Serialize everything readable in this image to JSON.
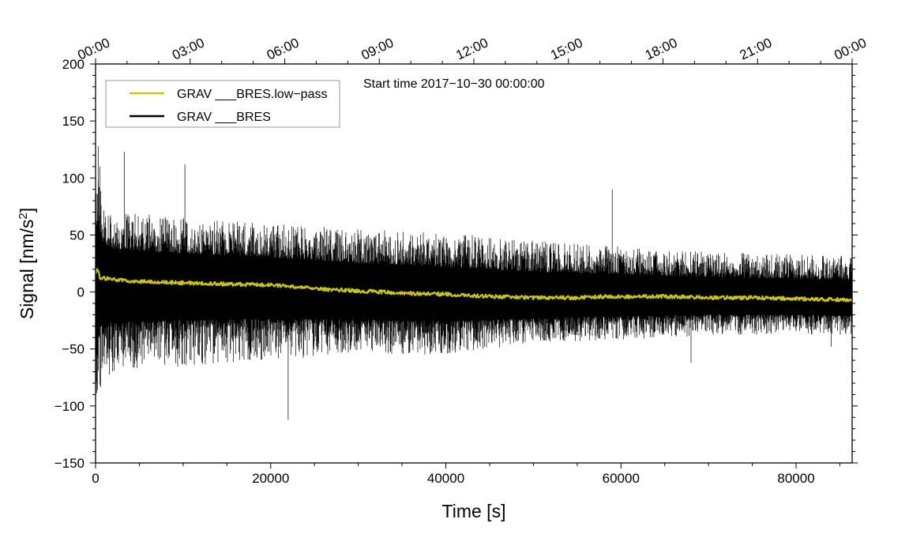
{
  "chart_data": {
    "type": "line",
    "title": "",
    "annotation": "Start time 2017−10−30 00:00:00",
    "xlabel": "Time [s]",
    "ylabel": "Signal [nm/s",
    "ylabel_sup": "2",
    "ylabel_close": "]",
    "xlim": [
      0,
      86400
    ],
    "ylim": [
      -150,
      200
    ],
    "x_ticks": [
      0,
      20000,
      40000,
      60000,
      80000
    ],
    "x_tick_labels": [
      "0",
      "20000",
      "40000",
      "60000",
      "80000"
    ],
    "y_ticks": [
      200,
      150,
      100,
      50,
      0,
      -50,
      -100,
      -150
    ],
    "y_tick_labels": [
      "200",
      "150",
      "100",
      "50",
      "0",
      "−50",
      "−100",
      "−150"
    ],
    "top_ticks": [
      0,
      10800,
      21600,
      32400,
      43200,
      54000,
      64800,
      75600,
      86400
    ],
    "top_tick_labels": [
      "00:00",
      "03:00",
      "06:00",
      "09:00",
      "12:00",
      "15:00",
      "18:00",
      "21:00",
      "00:00"
    ],
    "legend": {
      "placement": "top-left"
    },
    "series": [
      {
        "name": "GRAV ___BRES.low−pass",
        "color": "#c8c41c",
        "kind": "trend",
        "x": [
          0,
          200,
          500,
          1000,
          3000,
          6000,
          10000,
          15000,
          20000,
          22000,
          25000,
          30000,
          35000,
          40000,
          45000,
          50000,
          55000,
          58000,
          60000,
          65000,
          70000,
          75000,
          80000,
          86400
        ],
        "values": [
          15,
          22,
          11,
          12,
          10,
          9,
          8,
          7,
          6,
          5,
          3,
          1,
          -1,
          -2,
          -4,
          -5,
          -5,
          -4,
          -4,
          -4,
          -5,
          -5,
          -6,
          -7
        ]
      },
      {
        "name": "GRAV ___BRES",
        "color": "#000000",
        "kind": "noise",
        "x": [
          0,
          200,
          1000,
          3000,
          10000,
          20000,
          30000,
          40000,
          50000,
          60000,
          70000,
          80000,
          86400
        ],
        "values": [
          12,
          22,
          12,
          10,
          8,
          6,
          1,
          -2,
          -5,
          -4,
          -5,
          -6,
          -7
        ],
        "envelope_max": [
          80,
          105,
          75,
          70,
          65,
          60,
          55,
          52,
          45,
          40,
          35,
          33,
          32
        ],
        "envelope_min": [
          -80,
          -100,
          -75,
          -70,
          -65,
          -60,
          -55,
          -55,
          -45,
          -42,
          -38,
          -37,
          -38
        ],
        "peaks": [
          [
            300,
            128
          ],
          [
            500,
            110
          ],
          [
            3300,
            123
          ],
          [
            10200,
            112
          ],
          [
            22000,
            -112
          ],
          [
            59000,
            90
          ],
          [
            68000,
            -62
          ],
          [
            84000,
            -48
          ]
        ]
      }
    ]
  }
}
